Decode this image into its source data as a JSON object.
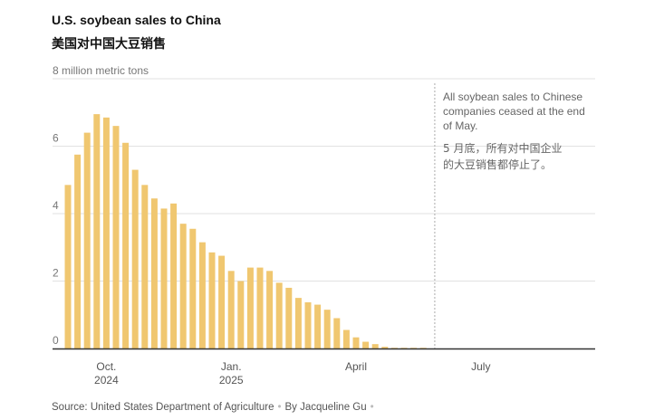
{
  "title": "U.S. soybean sales to China",
  "subtitle": "美国对中国大豆销售",
  "source": "Source: United States Department of Agriculture",
  "byline": "By Jacqueline Gu",
  "colors": {
    "bar": "#f0c770",
    "grid": "#e2e2e2",
    "axis": "#333333",
    "annotation_line": "#aaaaaa"
  },
  "chart_data": {
    "type": "bar",
    "ylabel": "million metric tons",
    "ylim": [
      0,
      8
    ],
    "yticks": [
      0,
      2,
      4,
      6,
      8
    ],
    "ytick_labels": [
      "0",
      "2",
      "4",
      "6",
      "8 million metric tons"
    ],
    "grid": true,
    "xticks": [
      {
        "label": "Oct.",
        "sublabel": "2024",
        "index": 4
      },
      {
        "label": "Jan.",
        "sublabel": "2025",
        "index": 17
      },
      {
        "label": "April",
        "sublabel": "",
        "index": 30
      },
      {
        "label": "July",
        "sublabel": "",
        "index": 43
      }
    ],
    "x_range_weeks": 55,
    "values": [
      4.85,
      5.75,
      6.4,
      6.95,
      6.85,
      6.6,
      6.1,
      5.3,
      4.85,
      4.45,
      4.15,
      4.3,
      3.7,
      3.55,
      3.15,
      2.85,
      2.75,
      2.3,
      2.0,
      2.4,
      2.4,
      2.3,
      1.95,
      1.8,
      1.5,
      1.37,
      1.3,
      1.15,
      0.9,
      0.55,
      0.33,
      0.2,
      0.13,
      0.05,
      0.02,
      0.02,
      0.02,
      0.02
    ],
    "annotation": {
      "index": 38.2,
      "text_en": "All soybean sales to Chinese companies ceased at the end of May.",
      "text_cn": "5 月底，所有对中国企业的大豆销售都停止了。"
    }
  }
}
